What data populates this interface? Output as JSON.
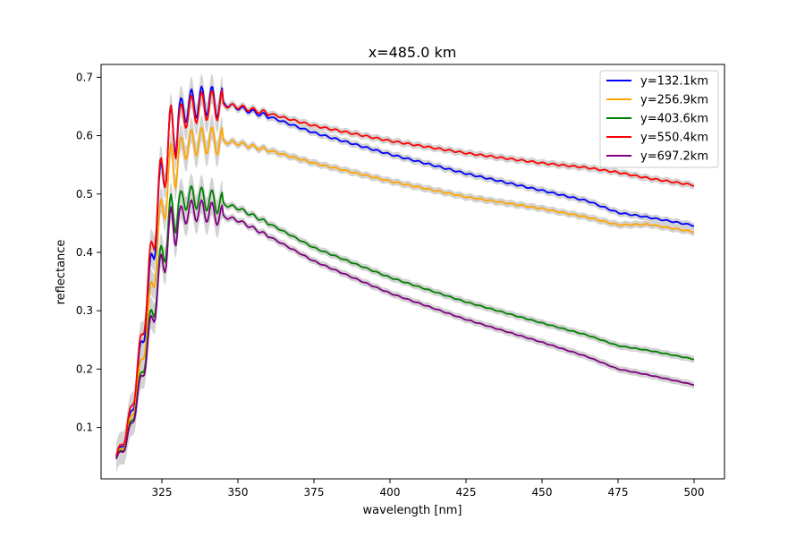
{
  "chart_data": {
    "type": "line",
    "title": "x=485.0 km",
    "xlabel": "wavelength [nm]",
    "ylabel": "reflectance",
    "xlim": [
      305,
      510
    ],
    "ylim": [
      0.012,
      0.722
    ],
    "xticks": [
      325,
      350,
      375,
      400,
      425,
      450,
      475,
      500
    ],
    "yticks": [
      0.1,
      0.2,
      0.3,
      0.4,
      0.5,
      0.6,
      0.7
    ],
    "grid": false,
    "legend_position": "top-right",
    "uncertainty_band_color": "#d3d3d3",
    "series": [
      {
        "name": "y=132.1km",
        "color": "#0000ff",
        "x": [
          310,
          313,
          316,
          318,
          320,
          322,
          324,
          326,
          328,
          330,
          332,
          335,
          340,
          345,
          350,
          360,
          375,
          400,
          425,
          450,
          465,
          475,
          485,
          500
        ],
        "y": [
          0.05,
          0.08,
          0.15,
          0.23,
          0.3,
          0.4,
          0.49,
          0.56,
          0.6,
          0.63,
          0.645,
          0.655,
          0.66,
          0.655,
          0.648,
          0.633,
          0.605,
          0.568,
          0.535,
          0.506,
          0.488,
          0.468,
          0.46,
          0.446
        ]
      },
      {
        "name": "y=256.9km",
        "color": "#ffa500",
        "x": [
          310,
          313,
          316,
          318,
          320,
          322,
          324,
          326,
          328,
          330,
          332,
          335,
          340,
          345,
          350,
          360,
          375,
          400,
          425,
          450,
          465,
          475,
          485,
          500
        ],
        "y": [
          0.048,
          0.075,
          0.14,
          0.2,
          0.27,
          0.35,
          0.43,
          0.5,
          0.54,
          0.565,
          0.58,
          0.588,
          0.592,
          0.59,
          0.587,
          0.575,
          0.553,
          0.522,
          0.495,
          0.475,
          0.46,
          0.447,
          0.448,
          0.435
        ]
      },
      {
        "name": "y=403.6km",
        "color": "#008000",
        "x": [
          310,
          313,
          316,
          318,
          320,
          322,
          324,
          326,
          328,
          330,
          332,
          335,
          340,
          345,
          350,
          360,
          375,
          400,
          425,
          450,
          465,
          475,
          485,
          500
        ],
        "y": [
          0.047,
          0.07,
          0.13,
          0.18,
          0.24,
          0.3,
          0.36,
          0.42,
          0.46,
          0.48,
          0.49,
          0.495,
          0.49,
          0.483,
          0.476,
          0.45,
          0.408,
          0.357,
          0.315,
          0.279,
          0.258,
          0.24,
          0.232,
          0.217
        ]
      },
      {
        "name": "y=550.4km",
        "color": "#ff0000",
        "x": [
          310,
          313,
          316,
          318,
          320,
          322,
          324,
          326,
          328,
          330,
          332,
          335,
          340,
          345,
          350,
          360,
          375,
          400,
          425,
          450,
          465,
          475,
          485,
          500
        ],
        "y": [
          0.052,
          0.085,
          0.16,
          0.24,
          0.32,
          0.42,
          0.5,
          0.56,
          0.6,
          0.62,
          0.635,
          0.645,
          0.652,
          0.652,
          0.65,
          0.638,
          0.617,
          0.591,
          0.57,
          0.553,
          0.545,
          0.537,
          0.527,
          0.515
        ]
      },
      {
        "name": "y=697.2km",
        "color": "#800080",
        "x": [
          310,
          313,
          316,
          318,
          320,
          322,
          324,
          326,
          328,
          330,
          332,
          335,
          340,
          345,
          350,
          360,
          375,
          400,
          425,
          450,
          465,
          475,
          485,
          500
        ],
        "y": [
          0.046,
          0.068,
          0.125,
          0.175,
          0.23,
          0.29,
          0.35,
          0.4,
          0.44,
          0.455,
          0.465,
          0.472,
          0.47,
          0.462,
          0.455,
          0.428,
          0.385,
          0.33,
          0.285,
          0.246,
          0.221,
          0.2,
          0.19,
          0.173
        ]
      }
    ]
  }
}
